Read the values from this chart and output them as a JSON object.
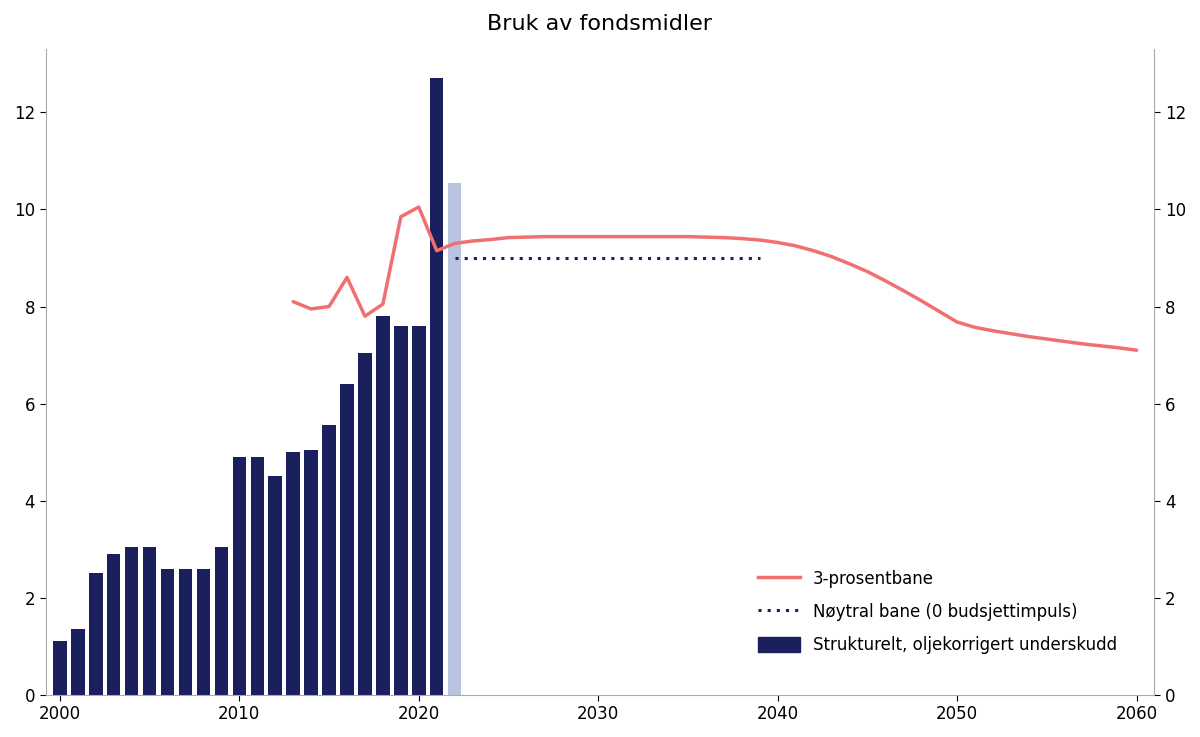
{
  "title": "Bruk av fondsmidler",
  "bar_years": [
    2000,
    2001,
    2002,
    2003,
    2004,
    2005,
    2006,
    2007,
    2008,
    2009,
    2010,
    2011,
    2012,
    2013,
    2014,
    2015,
    2016,
    2017,
    2018,
    2019,
    2020,
    2021,
    2022
  ],
  "bar_values": [
    1.1,
    1.35,
    2.5,
    2.9,
    3.05,
    3.05,
    2.6,
    2.6,
    2.6,
    3.05,
    4.9,
    4.9,
    4.5,
    5.0,
    5.05,
    5.55,
    6.4,
    7.05,
    7.8,
    7.6,
    7.6,
    12.7,
    10.55
  ],
  "bar_color_dark": "#1a1f5e",
  "bar_color_light": "#b8c4df",
  "bar_color_light_year": 2022,
  "red_line_x": [
    2013,
    2014,
    2015,
    2016,
    2017,
    2018,
    2019,
    2020,
    2021,
    2022,
    2023,
    2024,
    2025,
    2026,
    2027,
    2028,
    2029,
    2030,
    2031,
    2032,
    2033,
    2034,
    2035,
    2036,
    2037,
    2038,
    2039,
    2040,
    2041,
    2042,
    2043,
    2044,
    2045,
    2046,
    2047,
    2048,
    2049,
    2050,
    2051,
    2052,
    2053,
    2054,
    2055,
    2056,
    2057,
    2058,
    2059,
    2060
  ],
  "red_line_y": [
    8.1,
    7.95,
    8.0,
    8.6,
    7.8,
    8.05,
    9.85,
    10.05,
    9.15,
    9.3,
    9.35,
    9.38,
    9.42,
    9.43,
    9.44,
    9.44,
    9.44,
    9.44,
    9.44,
    9.44,
    9.44,
    9.44,
    9.44,
    9.43,
    9.42,
    9.4,
    9.37,
    9.32,
    9.25,
    9.15,
    9.03,
    8.88,
    8.72,
    8.53,
    8.33,
    8.12,
    7.9,
    7.68,
    7.57,
    7.5,
    7.44,
    7.38,
    7.33,
    7.28,
    7.23,
    7.19,
    7.15,
    7.1
  ],
  "dotted_line_x": [
    2022,
    2023,
    2024,
    2025,
    2026,
    2027,
    2028,
    2029,
    2030,
    2031,
    2032,
    2033,
    2034,
    2035,
    2036,
    2037,
    2038,
    2039
  ],
  "dotted_line_y": [
    9.0,
    9.0,
    9.0,
    9.0,
    9.0,
    9.0,
    9.0,
    9.0,
    9.0,
    9.0,
    9.0,
    9.0,
    9.0,
    9.0,
    9.0,
    9.0,
    9.0,
    9.0
  ],
  "red_line_color": "#f07070",
  "dotted_line_color": "#1a1f5e",
  "xlim": [
    1999.2,
    2061
  ],
  "ylim": [
    0,
    13.3
  ],
  "yticks": [
    0,
    2,
    4,
    6,
    8,
    10,
    12
  ],
  "xticks": [
    2000,
    2010,
    2020,
    2030,
    2040,
    2050,
    2060
  ],
  "legend_labels": [
    "3-prosentbane",
    "Nøytral bane (0 budsjettimpuls)",
    "Strukturelt, oljekorrigert underskudd"
  ],
  "title_fontsize": 16,
  "tick_fontsize": 12,
  "bg_color": "#ffffff"
}
